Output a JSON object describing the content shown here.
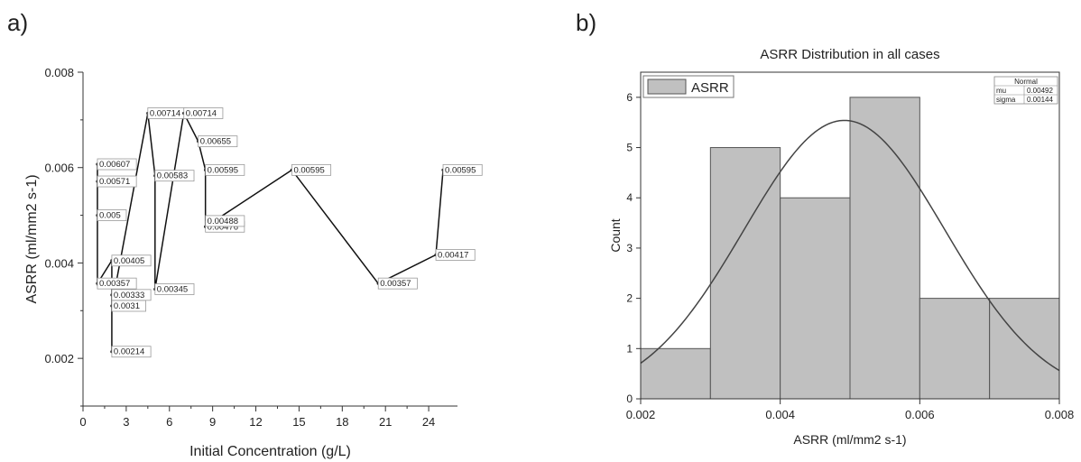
{
  "panels": {
    "a": "a)",
    "b": "b)"
  },
  "chart_data": [
    {
      "type": "line",
      "title": "",
      "xlabel": "Initial Concentration (g/L)",
      "ylabel": "ASRR (ml/mm2 s-1)",
      "xlim": [
        0,
        26
      ],
      "ylim": [
        0.001,
        0.008
      ],
      "xticks": [
        0,
        3,
        6,
        9,
        12,
        15,
        18,
        21,
        24
      ],
      "yticks": [
        0.002,
        0.004,
        0.006,
        0.008
      ],
      "ytick_labels": [
        "0.002",
        "0.004",
        "0.006",
        "0.008"
      ],
      "x": [
        1.0,
        1.0,
        1.0,
        1.0,
        2.0,
        2.0,
        2.0,
        2.0,
        4.5,
        5.0,
        5.0,
        7.0,
        8.0,
        8.5,
        8.5,
        14.5,
        20.5,
        24.5,
        25.0
      ],
      "y": [
        0.00357,
        0.00607,
        0.00571,
        0.005,
        0.00405,
        0.00333,
        0.0031,
        0.00214,
        0.00714,
        0.00583,
        0.00345,
        0.00714,
        0.00655,
        0.00595,
        0.00476,
        0.00595,
        0.00357,
        0.00417,
        0.00595
      ],
      "labels": [
        "0.00357",
        "0.00607",
        "0.00571",
        "0.005",
        "0.00405",
        "0.00333",
        "0.0031",
        "0.00214",
        "0.00714",
        "0.00583",
        "0.00345",
        "0.00714",
        "0.00655",
        "0.00595",
        "0.00476",
        "0.00595",
        "0.00357",
        "0.00417",
        "0.00595"
      ],
      "path_order": [
        3,
        1,
        2,
        0,
        4,
        7,
        5,
        6,
        8,
        9,
        10,
        11,
        12,
        13,
        14,
        15,
        16,
        17,
        18
      ],
      "extra_annotation": {
        "label": "0.00488",
        "x": 8.5,
        "y": 0.00488
      }
    },
    {
      "type": "bar",
      "title": "ASRR Distribution in all cases",
      "xlabel": "ASRR (ml/mm2 s-1)",
      "ylabel": "Count",
      "bin_edges": [
        0.002,
        0.003,
        0.004,
        0.005,
        0.006,
        0.007,
        0.008
      ],
      "values": [
        1,
        5,
        4,
        6,
        2,
        2
      ],
      "xlim": [
        0.002,
        0.008
      ],
      "ylim": [
        0,
        6.5
      ],
      "xticks": [
        0.002,
        0.004,
        0.006,
        0.008
      ],
      "xtick_labels": [
        "0.002",
        "0.004",
        "0.006",
        "0.008"
      ],
      "yticks": [
        0,
        1,
        2,
        3,
        4,
        5,
        6
      ],
      "legend": {
        "label": "ASRR",
        "position": "top-left"
      },
      "fit": {
        "name": "Normal",
        "mu_label": "mu",
        "mu": "0.00492",
        "sigma_label": "sigma",
        "sigma": "0.00144",
        "mu_value": 0.00492,
        "sigma_value": 0.00144,
        "n": 20,
        "bin_width": 0.001
      },
      "colors": {
        "bar_fill": "#c0c0c0",
        "bar_stroke": "#555555",
        "curve": "#444444"
      }
    }
  ]
}
